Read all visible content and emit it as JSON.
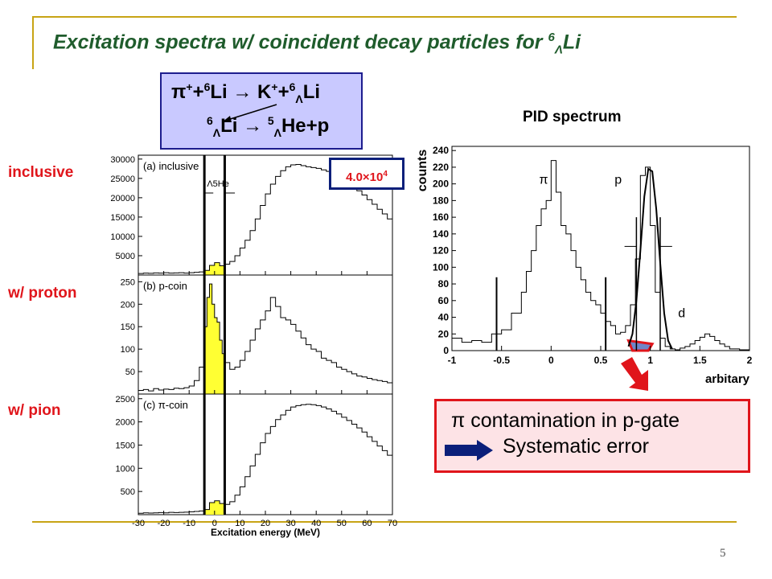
{
  "title": {
    "prefix": "Excitation spectra w/ coincident decay particles for ",
    "sup": "6",
    "sub": "Λ",
    "suffix": "Li"
  },
  "reaction": {
    "line1": {
      "pi": "π",
      "plus_sup": "+",
      "a": "+",
      "six": "6",
      "li": "Li → K",
      "k_sup": "+",
      "b": "+",
      "six2": "6",
      "lam": "Λ",
      "li2": "Li"
    },
    "line2": {
      "six": "6",
      "lam": "Λ",
      "li": "Li → ",
      "five": "5",
      "lam2": "Λ",
      "he": "He+p"
    }
  },
  "side_labels": {
    "inclusive": "inclusive",
    "proton": "w/ proton",
    "pion": "w/ pion"
  },
  "count_box": {
    "base": "4.0×10",
    "exp": "4"
  },
  "pid": {
    "title": "PID spectrum"
  },
  "result": {
    "pi": "π",
    "line1": " contamination in p-gate",
    "line2": "Systematic error"
  },
  "page_number": "5",
  "chart_data": [
    {
      "type": "line",
      "panel_label": "(a) inclusive",
      "annotation": "Λ5He",
      "xlabel": "Excitation energy (MeV)",
      "xlim": [
        -30,
        70
      ],
      "xticks": [
        -30,
        -20,
        -10,
        0,
        10,
        20,
        30,
        40,
        50,
        60,
        70
      ],
      "ylim": [
        0,
        31000
      ],
      "yticks": [
        5000,
        10000,
        15000,
        20000,
        25000,
        30000
      ],
      "x": [
        -30,
        -28,
        -26,
        -24,
        -22,
        -20,
        -18,
        -16,
        -14,
        -12,
        -10,
        -8,
        -6,
        -4,
        -2,
        0,
        2,
        4,
        6,
        8,
        10,
        12,
        14,
        16,
        18,
        20,
        22,
        24,
        26,
        28,
        30,
        32,
        34,
        36,
        38,
        40,
        42,
        44,
        46,
        48,
        50,
        52,
        54,
        56,
        58,
        60,
        62,
        64,
        66,
        68,
        70
      ],
      "y": [
        400,
        500,
        450,
        550,
        500,
        600,
        500,
        550,
        600,
        500,
        600,
        700,
        800,
        1200,
        2500,
        3200,
        2400,
        2800,
        3500,
        5000,
        7000,
        9000,
        11500,
        14500,
        18000,
        21000,
        23500,
        25500,
        27000,
        28000,
        28500,
        28600,
        28300,
        28000,
        27800,
        27600,
        27200,
        26800,
        26200,
        25500,
        24700,
        23800,
        22800,
        21800,
        20700,
        19500,
        18300,
        17000,
        15800,
        14500,
        13300
      ],
      "highlight_range": [
        -4,
        4
      ]
    },
    {
      "type": "line",
      "panel_label": "(b) p-coin",
      "xlim": [
        -30,
        70
      ],
      "ylim": [
        0,
        265
      ],
      "yticks": [
        50,
        100,
        150,
        200,
        250
      ],
      "x": [
        -30,
        -28,
        -26,
        -24,
        -22,
        -20,
        -18,
        -16,
        -14,
        -12,
        -10,
        -8,
        -6,
        -4,
        -3,
        -2,
        -1,
        0,
        1,
        2,
        3,
        4,
        6,
        8,
        10,
        12,
        14,
        16,
        18,
        20,
        22,
        24,
        26,
        28,
        30,
        32,
        34,
        36,
        38,
        40,
        42,
        44,
        46,
        48,
        50,
        52,
        54,
        56,
        58,
        60,
        62,
        64,
        66,
        68,
        70
      ],
      "y": [
        8,
        10,
        7,
        12,
        9,
        11,
        10,
        13,
        12,
        14,
        18,
        30,
        60,
        150,
        215,
        245,
        200,
        170,
        160,
        120,
        90,
        70,
        55,
        60,
        75,
        95,
        120,
        145,
        165,
        185,
        215,
        195,
        170,
        165,
        155,
        140,
        125,
        110,
        100,
        95,
        80,
        75,
        70,
        60,
        55,
        50,
        45,
        40,
        38,
        35,
        32,
        30,
        28,
        25,
        22
      ],
      "highlight_range": [
        -4,
        4
      ]
    },
    {
      "type": "line",
      "panel_label": "(c) π-coin",
      "xlim": [
        -30,
        70
      ],
      "ylim": [
        0,
        2600
      ],
      "yticks": [
        500,
        1000,
        1500,
        2000,
        2500
      ],
      "x": [
        -30,
        -28,
        -26,
        -24,
        -22,
        -20,
        -18,
        -16,
        -14,
        -12,
        -10,
        -8,
        -6,
        -4,
        -2,
        0,
        2,
        4,
        6,
        8,
        10,
        12,
        14,
        16,
        18,
        20,
        22,
        24,
        26,
        28,
        30,
        32,
        34,
        36,
        38,
        40,
        42,
        44,
        46,
        48,
        50,
        52,
        54,
        56,
        58,
        60,
        62,
        64,
        66,
        68,
        70
      ],
      "y": [
        30,
        40,
        35,
        40,
        45,
        40,
        50,
        45,
        50,
        55,
        60,
        70,
        80,
        110,
        260,
        300,
        240,
        220,
        280,
        420,
        600,
        820,
        1050,
        1300,
        1550,
        1750,
        1900,
        2050,
        2150,
        2250,
        2320,
        2350,
        2370,
        2380,
        2370,
        2350,
        2320,
        2280,
        2230,
        2170,
        2100,
        2030,
        1950,
        1870,
        1780,
        1680,
        1580,
        1480,
        1380,
        1280,
        1180
      ],
      "highlight_range": [
        -4,
        4
      ]
    },
    {
      "type": "line",
      "title": "PID spectrum",
      "ylabel": "counts",
      "xlabel": "arbitary",
      "xlim": [
        -1,
        2
      ],
      "xticks": [
        -1,
        -0.5,
        0,
        0.5,
        1,
        1.5,
        2
      ],
      "ylim": [
        0,
        245
      ],
      "yticks": [
        0,
        20,
        40,
        60,
        80,
        100,
        120,
        140,
        160,
        180,
        200,
        220,
        240
      ],
      "series": [
        {
          "name": "",
          "x": [
            -1,
            -0.9,
            -0.8,
            -0.7,
            -0.6,
            -0.5,
            -0.4,
            -0.3,
            -0.25,
            -0.2,
            -0.15,
            -0.1,
            -0.05,
            0,
            0.05,
            0.1,
            0.15,
            0.2,
            0.25,
            0.3,
            0.35,
            0.4,
            0.45,
            0.5,
            0.55,
            0.6,
            0.65,
            0.7,
            0.75,
            0.8,
            0.85,
            0.9,
            0.95,
            1,
            1.05,
            1.1,
            1.15,
            1.2,
            1.25,
            1.3,
            1.35,
            1.4,
            1.45,
            1.5,
            1.55,
            1.6,
            1.65,
            1.7,
            1.75,
            1.8,
            1.9,
            2
          ],
          "y": [
            15,
            10,
            12,
            10,
            20,
            25,
            45,
            70,
            95,
            120,
            150,
            170,
            180,
            228,
            190,
            150,
            140,
            120,
            100,
            85,
            70,
            60,
            55,
            45,
            35,
            30,
            20,
            22,
            30,
            55,
            110,
            210,
            220,
            150,
            70,
            15,
            5,
            2,
            1,
            3,
            5,
            8,
            12,
            16,
            20,
            17,
            12,
            8,
            5,
            2,
            1,
            0
          ]
        },
        {
          "name": "",
          "type": "gaussian-fit",
          "x": [
            0.78,
            0.82,
            0.86,
            0.9,
            0.94,
            0.98,
            1.02,
            1.06,
            1.1,
            1.14,
            1.18,
            1.22
          ],
          "y": [
            5,
            20,
            60,
            120,
            185,
            218,
            215,
            170,
            105,
            45,
            12,
            2
          ]
        }
      ],
      "annotations": [
        "π",
        "p",
        "d"
      ],
      "gate_lines_x": [
        -0.55,
        0.55
      ],
      "p_gate": [
        0.86,
        1.1
      ],
      "contamination_region": [
        0.72,
        1.02
      ]
    }
  ]
}
